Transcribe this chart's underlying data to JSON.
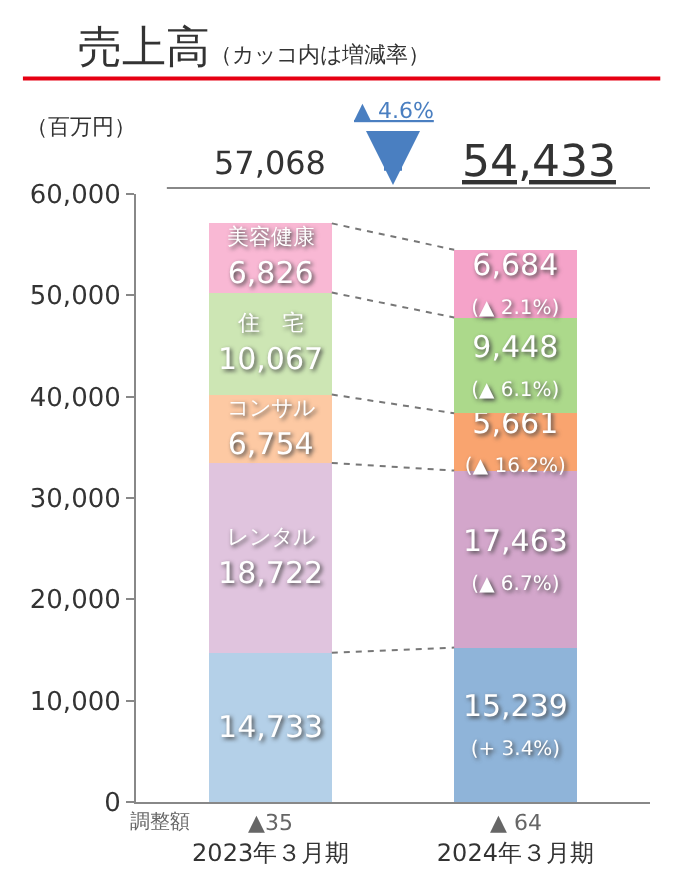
{
  "chart_data": {
    "type": "bar",
    "stacked": true,
    "title": "売上高",
    "subtitle": "（カッコ内は増減率）",
    "ylabel": "（百万円）",
    "categories": [
      "2023年３月期",
      "2024年３月期"
    ],
    "series": [
      {
        "colors": [
          "#b4d0e8",
          "#8fb4d9"
        ],
        "values": [
          14733,
          15239
        ],
        "value_labels": [
          "14,733",
          "15,239\n(+ 3.4%)"
        ]
      },
      {
        "colors": [
          "#e0c4de",
          "#d3a6cb"
        ],
        "values": [
          18722,
          17463
        ],
        "value_labels": [
          "レンタル\n18,722",
          "17,463\n(▲ 6.7%)"
        ]
      },
      {
        "colors": [
          "#fdc9a3",
          "#f9a46f"
        ],
        "values": [
          6754,
          5661
        ],
        "value_labels": [
          "コンサル\n6,754",
          "5,661\n(▲ 16.2%)"
        ]
      },
      {
        "colors": [
          "#cde6b4",
          "#acd98b"
        ],
        "values": [
          10067,
          9448
        ],
        "value_labels": [
          "住　宅\n10,067",
          "9,448\n(▲ 6.1%)"
        ]
      },
      {
        "colors": [
          "#f9b8d4",
          "#f5a3c9"
        ],
        "values": [
          6826,
          6684
        ],
        "value_labels": [
          "美容健康\n6,826",
          "6,684\n(▲ 2.1%)"
        ]
      }
    ],
    "annotations": [
      "57,068",
      "54,433",
      "▲ 4.6%",
      "調整額",
      "▲35",
      "▲ 64"
    ],
    "ylim": [
      0,
      60000
    ],
    "yticks": [
      0,
      {
        "value": 10000,
        "label": "10,000"
      },
      {
        "value": 20000,
        "label": "20,000"
      },
      {
        "value": 30000,
        "label": "30,000"
      },
      {
        "value": 40000,
        "label": "40,000"
      },
      {
        "value": 50000,
        "label": "50,000"
      },
      {
        "value": 60000,
        "label": "60,000"
      }
    ],
    "marker": "none"
  }
}
